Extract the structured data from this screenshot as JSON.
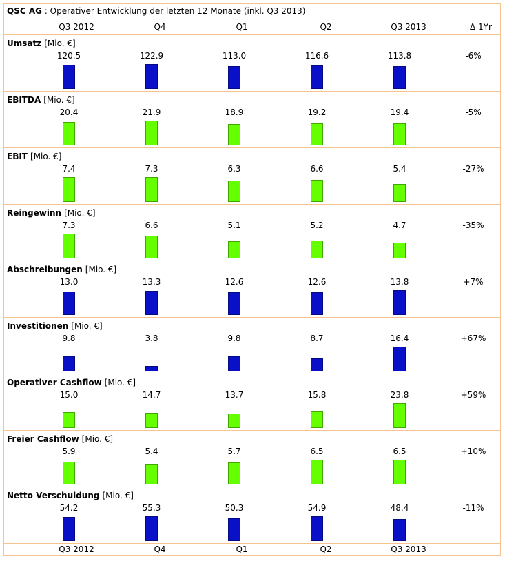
{
  "title": {
    "company": "QSC AG",
    "subtitle": " : Operativer Entwicklung der letzten 12 Monate (inkl. Q3 2013)"
  },
  "colors": {
    "blue": "#0a10c8",
    "green": "#66ff00",
    "border": "#f5c38e"
  },
  "columns": [
    "Q3 2012",
    "Q4",
    "Q1",
    "Q2",
    "Q3 2013"
  ],
  "change_header": "Δ 1Yr",
  "chart_data": [
    {
      "type": "bar",
      "title": "Umsatz",
      "unit": "[Mio. €]",
      "color": "blue",
      "categories": [
        "Q3 2012",
        "Q4",
        "Q1",
        "Q2",
        "Q3 2013"
      ],
      "values": [
        "120.5",
        "122.9",
        "113.0",
        "116.6",
        "113.8"
      ],
      "change": "-6%"
    },
    {
      "type": "bar",
      "title": "EBITDA",
      "unit": "[Mio. €]",
      "color": "green",
      "categories": [
        "Q3 2012",
        "Q4",
        "Q1",
        "Q2",
        "Q3 2013"
      ],
      "values": [
        "20.4",
        "21.9",
        "18.9",
        "19.2",
        "19.4"
      ],
      "change": "-5%"
    },
    {
      "type": "bar",
      "title": "EBIT",
      "unit": "[Mio. €]",
      "color": "green",
      "categories": [
        "Q3 2012",
        "Q4",
        "Q1",
        "Q2",
        "Q3 2013"
      ],
      "values": [
        "7.4",
        "7.3",
        "6.3",
        "6.6",
        "5.4"
      ],
      "change": "-27%"
    },
    {
      "type": "bar",
      "title": "Reingewinn",
      "unit": "[Mio. €]",
      "color": "green",
      "categories": [
        "Q3 2012",
        "Q4",
        "Q1",
        "Q2",
        "Q3 2013"
      ],
      "values": [
        "7.3",
        "6.6",
        "5.1",
        "5.2",
        "4.7"
      ],
      "change": "-35%"
    },
    {
      "type": "bar",
      "title": "Abschreibungen",
      "unit": "[Mio. €]",
      "color": "blue",
      "categories": [
        "Q3 2012",
        "Q4",
        "Q1",
        "Q2",
        "Q3 2013"
      ],
      "values": [
        "13.0",
        "13.3",
        "12.6",
        "12.6",
        "13.8"
      ],
      "change": "+7%"
    },
    {
      "type": "bar",
      "title": "Investitionen",
      "unit": "[Mio. €]",
      "color": "blue",
      "categories": [
        "Q3 2012",
        "Q4",
        "Q1",
        "Q2",
        "Q3 2013"
      ],
      "values": [
        "9.8",
        "3.8",
        "9.8",
        "8.7",
        "16.4"
      ],
      "change": "+67%"
    },
    {
      "type": "bar",
      "title": "Operativer Cashflow",
      "unit": "[Mio. €]",
      "color": "green",
      "categories": [
        "Q3 2012",
        "Q4",
        "Q1",
        "Q2",
        "Q3 2013"
      ],
      "values": [
        "15.0",
        "14.7",
        "13.7",
        "15.8",
        "23.8"
      ],
      "change": "+59%"
    },
    {
      "type": "bar",
      "title": "Freier Cashflow",
      "unit": "[Mio. €]",
      "color": "green",
      "categories": [
        "Q3 2012",
        "Q4",
        "Q1",
        "Q2",
        "Q3 2013"
      ],
      "values": [
        "5.9",
        "5.4",
        "5.7",
        "6.5",
        "6.5"
      ],
      "change": "+10%"
    },
    {
      "type": "bar",
      "title": "Netto Verschuldung",
      "unit": "[Mio. €]",
      "color": "blue",
      "categories": [
        "Q3 2012",
        "Q4",
        "Q1",
        "Q2",
        "Q3 2013"
      ],
      "values": [
        "54.2",
        "55.3",
        "50.3",
        "54.9",
        "48.4"
      ],
      "change": "-11%"
    }
  ]
}
